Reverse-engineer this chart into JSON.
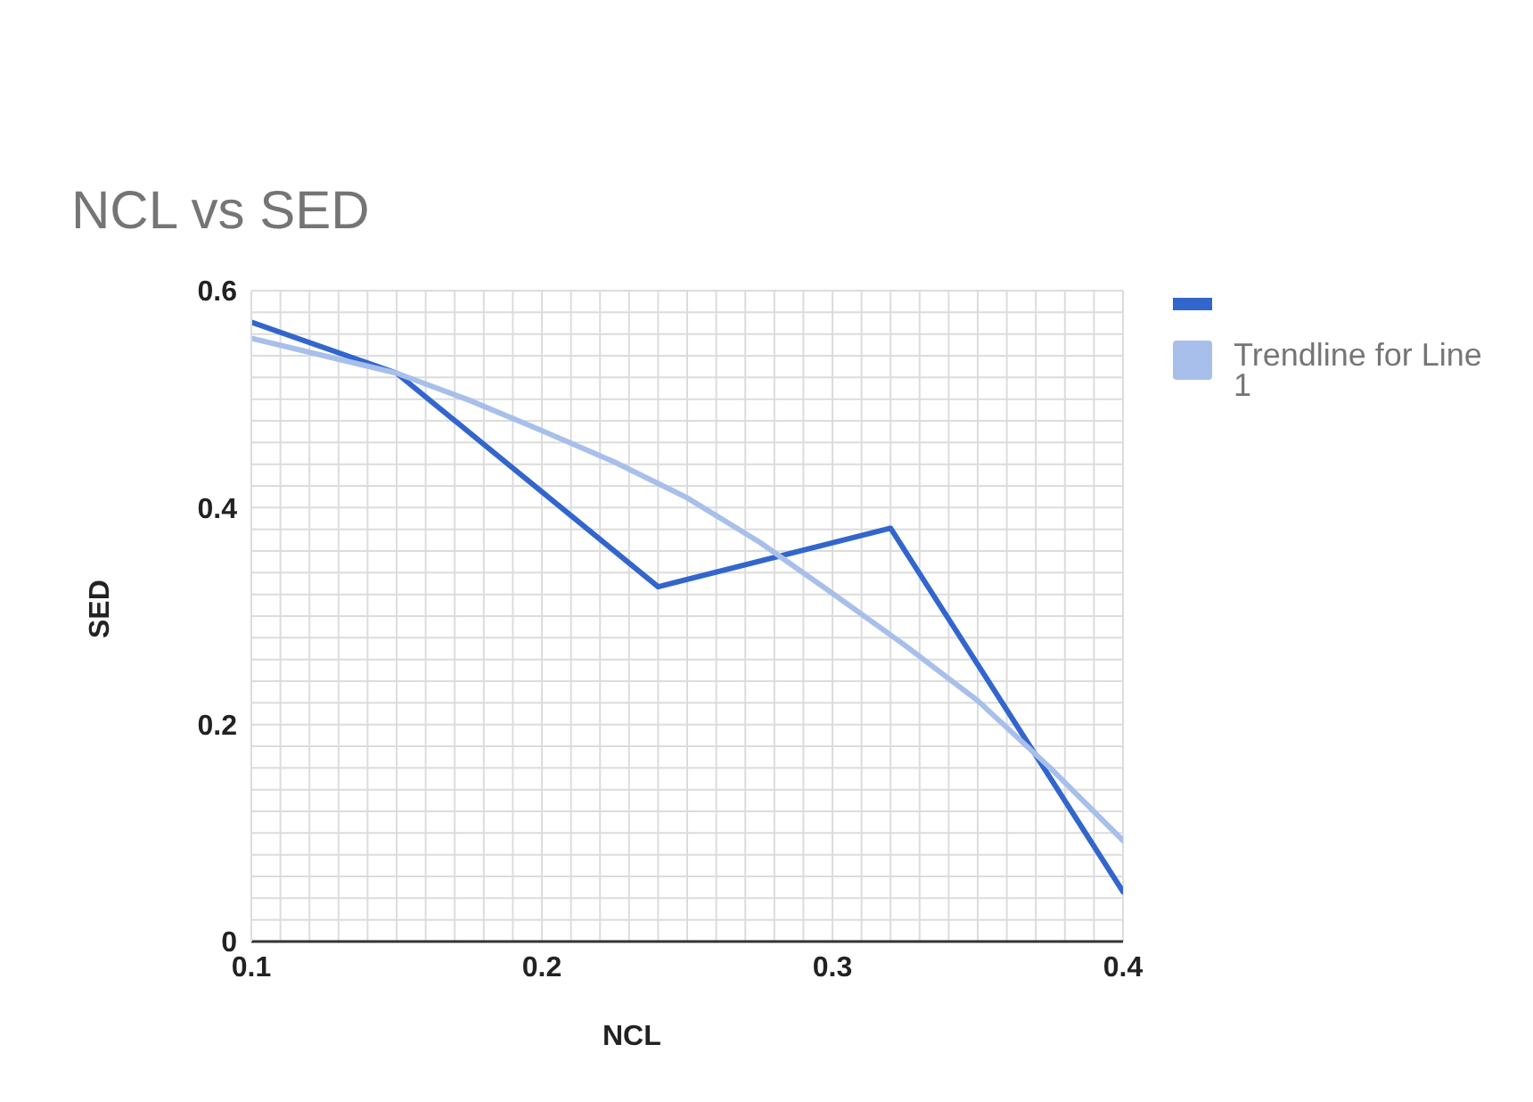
{
  "chart_data": {
    "type": "line",
    "title": "NCL vs SED",
    "xlabel": "NCL",
    "ylabel": "SED",
    "series": [
      {
        "color": "#3366cc",
        "x": [
          0.1,
          0.15,
          0.24,
          0.32,
          0.4
        ],
        "values": [
          0.571,
          0.524,
          0.327,
          0.381,
          0.046
        ]
      },
      {
        "name": "Trendline for Line 1",
        "color": "#a8bfeb",
        "x": [
          0.1,
          0.125,
          0.15,
          0.175,
          0.2,
          0.225,
          0.25,
          0.275,
          0.3,
          0.325,
          0.35,
          0.375,
          0.4
        ],
        "values": [
          0.556,
          0.54,
          0.524,
          0.499,
          0.471,
          0.442,
          0.409,
          0.368,
          0.321,
          0.273,
          0.222,
          0.16,
          0.093
        ]
      }
    ],
    "xlim": [
      0.1,
      0.4
    ],
    "xticks": [
      0.1,
      {
        "value": 0.11,
        "label": null
      },
      {
        "value": 0.12,
        "label": null
      },
      {
        "value": 0.13,
        "label": null
      },
      {
        "value": 0.14,
        "label": null
      },
      {
        "value": 0.15,
        "label": null
      },
      {
        "value": 0.16,
        "label": null
      },
      {
        "value": 0.17,
        "label": null
      },
      {
        "value": 0.18,
        "label": null
      },
      {
        "value": 0.19,
        "label": null
      },
      0.2,
      {
        "value": 0.21,
        "label": null
      },
      {
        "value": 0.22,
        "label": null
      },
      {
        "value": 0.23,
        "label": null
      },
      {
        "value": 0.24,
        "label": null
      },
      {
        "value": 0.25,
        "label": null
      },
      {
        "value": 0.26,
        "label": null
      },
      {
        "value": 0.27,
        "label": null
      },
      {
        "value": 0.28,
        "label": null
      },
      {
        "value": 0.29,
        "label": null
      },
      0.3,
      {
        "value": 0.31,
        "label": null
      },
      {
        "value": 0.32,
        "label": null
      },
      {
        "value": 0.33,
        "label": null
      },
      {
        "value": 0.34,
        "label": null
      },
      {
        "value": 0.35,
        "label": null
      },
      {
        "value": 0.36,
        "label": null
      },
      {
        "value": 0.37,
        "label": null
      },
      {
        "value": 0.38,
        "label": null
      },
      {
        "value": 0.39,
        "label": null
      },
      0.4
    ],
    "ylim": [
      0,
      0.6
    ],
    "yticks": [
      0,
      {
        "value": 0.02,
        "label": null
      },
      {
        "value": 0.04,
        "label": null
      },
      {
        "value": 0.06,
        "label": null
      },
      {
        "value": 0.08,
        "label": null
      },
      {
        "value": 0.1,
        "label": null
      },
      {
        "value": 0.12,
        "label": null
      },
      {
        "value": 0.14,
        "label": null
      },
      {
        "value": 0.16,
        "label": null
      },
      {
        "value": 0.18,
        "label": null
      },
      0.2,
      {
        "value": 0.22,
        "label": null
      },
      {
        "value": 0.24,
        "label": null
      },
      {
        "value": 0.26,
        "label": null
      },
      {
        "value": 0.28,
        "label": null
      },
      {
        "value": 0.3,
        "label": null
      },
      {
        "value": 0.32,
        "label": null
      },
      {
        "value": 0.34,
        "label": null
      },
      {
        "value": 0.36,
        "label": null
      },
      {
        "value": 0.38,
        "label": null
      },
      0.4,
      {
        "value": 0.42,
        "label": null
      },
      {
        "value": 0.44,
        "label": null
      },
      {
        "value": 0.46,
        "label": null
      },
      {
        "value": 0.48,
        "label": null
      },
      {
        "value": 0.5,
        "label": null
      },
      {
        "value": 0.52,
        "label": null
      },
      {
        "value": 0.54,
        "label": null
      },
      {
        "value": 0.56,
        "label": null
      },
      {
        "value": 0.58,
        "label": null
      },
      0.6
    ],
    "grid": true,
    "legend": "top right",
    "marker": "none",
    "line_style": "solid"
  }
}
